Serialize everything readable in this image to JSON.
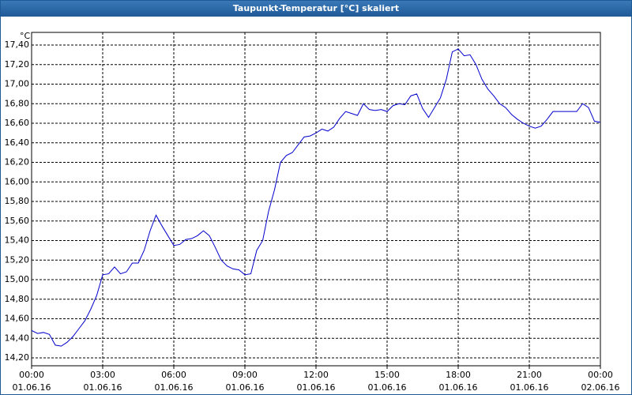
{
  "chart_data": {
    "type": "line",
    "title": "Taupunkt-Temperatur [°C] skaliert",
    "y_unit": "°C",
    "x": [
      0,
      0.25,
      0.5,
      0.75,
      1,
      1.25,
      1.5,
      1.75,
      2,
      2.25,
      2.5,
      2.75,
      3,
      3.25,
      3.5,
      3.75,
      4,
      4.25,
      4.5,
      4.75,
      5,
      5.25,
      5.5,
      5.75,
      6,
      6.25,
      6.5,
      6.75,
      7,
      7.25,
      7.5,
      7.75,
      8,
      8.25,
      8.5,
      8.75,
      9,
      9.25,
      9.5,
      9.75,
      10,
      10.25,
      10.5,
      10.75,
      11,
      11.25,
      11.5,
      11.75,
      12,
      12.25,
      12.5,
      12.75,
      13,
      13.25,
      13.5,
      13.75,
      14,
      14.25,
      14.5,
      14.75,
      15,
      15.25,
      15.5,
      15.75,
      16,
      16.25,
      16.5,
      16.75,
      17,
      17.25,
      17.5,
      17.75,
      18,
      18.25,
      18.5,
      18.75,
      19,
      19.25,
      19.5,
      19.75,
      20,
      20.25,
      20.5,
      20.75,
      21,
      21.25,
      21.5,
      21.75,
      22,
      22.25,
      22.5,
      22.75,
      23,
      23.25,
      23.5,
      23.75,
      24
    ],
    "series": [
      {
        "name": "Taupunkt",
        "color": "#0000cc",
        "values": [
          14.48,
          14.45,
          14.46,
          14.44,
          14.33,
          14.32,
          14.36,
          14.42,
          14.5,
          14.58,
          14.7,
          14.84,
          15.05,
          15.06,
          15.13,
          15.06,
          15.08,
          15.17,
          15.17,
          15.3,
          15.5,
          15.66,
          15.55,
          15.45,
          15.35,
          15.36,
          15.41,
          15.42,
          15.45,
          15.5,
          15.45,
          15.33,
          15.2,
          15.14,
          15.11,
          15.1,
          15.05,
          15.06,
          15.3,
          15.4,
          15.7,
          15.92,
          16.2,
          16.27,
          16.3,
          16.38,
          16.46,
          16.47,
          16.5,
          16.54,
          16.52,
          16.56,
          16.65,
          16.72,
          16.7,
          16.68,
          16.8,
          16.74,
          16.73,
          16.74,
          16.72,
          16.78,
          16.8,
          16.79,
          16.88,
          16.9,
          16.75,
          16.66,
          16.76,
          16.86,
          17.05,
          17.33,
          17.36,
          17.29,
          17.3,
          17.2,
          17.05,
          16.95,
          16.88,
          16.8,
          16.76,
          16.69,
          16.64,
          16.6,
          16.57,
          16.55,
          16.57,
          16.64,
          16.72,
          16.72,
          16.72,
          16.72,
          16.72,
          16.8,
          16.76,
          16.62,
          16.61
        ]
      }
    ],
    "xlim": [
      0,
      24
    ],
    "xticks": [
      {
        "value": 0,
        "label": "00:00"
      },
      {
        "value": 3,
        "label": "03:00"
      },
      {
        "value": 6,
        "label": "06:00"
      },
      {
        "value": 9,
        "label": "09:00"
      },
      {
        "value": 12,
        "label": "12:00"
      },
      {
        "value": 15,
        "label": "15:00"
      },
      {
        "value": 18,
        "label": "18:00"
      },
      {
        "value": 21,
        "label": "21:00"
      },
      {
        "value": 24,
        "label": "00:00"
      }
    ],
    "xtick_dates": [
      "01.06.16",
      "01.06.16",
      "01.06.16",
      "01.06.16",
      "01.06.16",
      "01.06.16",
      "01.06.16",
      "01.06.16",
      "02.06.16"
    ],
    "ylim": [
      14.2,
      17.4
    ],
    "yticks": [
      {
        "value": 14.2,
        "label": "14,20"
      },
      {
        "value": 14.4,
        "label": "14,40"
      },
      {
        "value": 14.6,
        "label": "14,60"
      },
      {
        "value": 14.8,
        "label": "14,80"
      },
      {
        "value": 15.0,
        "label": "15,00"
      },
      {
        "value": 15.2,
        "label": "15,20"
      },
      {
        "value": 15.4,
        "label": "15,40"
      },
      {
        "value": 15.6,
        "label": "15,60"
      },
      {
        "value": 15.8,
        "label": "15,80"
      },
      {
        "value": 16.0,
        "label": "16,00"
      },
      {
        "value": 16.2,
        "label": "16,20"
      },
      {
        "value": 16.4,
        "label": "16,40"
      },
      {
        "value": 16.6,
        "label": "16,60"
      },
      {
        "value": 16.8,
        "label": "16,80"
      },
      {
        "value": 17.0,
        "label": "17,00"
      },
      {
        "value": 17.2,
        "label": "17,20"
      },
      {
        "value": 17.4,
        "label": "17,40"
      }
    ],
    "grid": true
  }
}
